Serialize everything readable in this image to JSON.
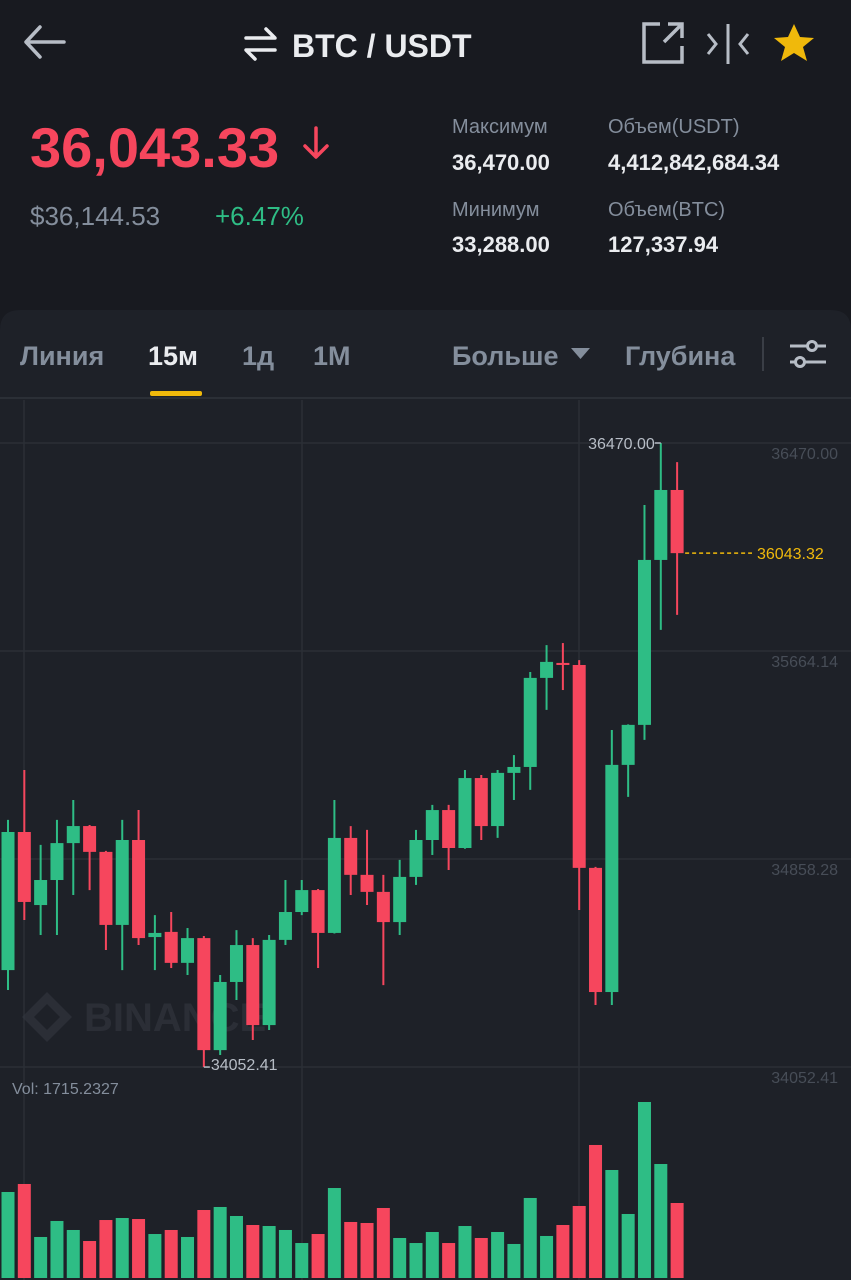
{
  "header": {
    "title": "BTC / USDT"
  },
  "price": {
    "last": "36,043.33",
    "usd": "$36,144.53",
    "change": "+6.47%"
  },
  "stats": [
    {
      "label": "Максимум",
      "value": "36,470.00"
    },
    {
      "label": "Объем(USDT)",
      "value": "4,412,842,684.34"
    },
    {
      "label": "Минимум",
      "value": "33,288.00"
    },
    {
      "label": "Объем(BTC)",
      "value": "127,337.94"
    }
  ],
  "tabs": [
    "Линия",
    "15м",
    "1д",
    "1М",
    "Больше",
    "Глубина"
  ],
  "chart_data": {
    "type": "candlestick",
    "open": [
      34428,
      34963,
      34680,
      34777,
      34920,
      34986,
      34886,
      34603,
      34932,
      34556,
      34576,
      34456,
      34552,
      34118,
      34382,
      34525,
      34215,
      34545,
      34653,
      34738,
      34572,
      34940,
      34797,
      34731,
      34614,
      34789,
      34932,
      35048,
      34901,
      35172,
      34986,
      35192,
      35215,
      35560,
      35618,
      35610,
      34824,
      34343,
      35223,
      35378,
      36017,
      36288
    ],
    "high": [
      35010,
      35203,
      34913,
      35010,
      35087,
      34990,
      34890,
      35010,
      35048,
      34641,
      34653,
      34591,
      34560,
      34409,
      34583,
      34552,
      34564,
      34777,
      34777,
      34742,
      35087,
      34986,
      34971,
      34797,
      34855,
      34971,
      35068,
      35068,
      35203,
      35184,
      35203,
      35261,
      35583,
      35687,
      35695,
      35629,
      34828,
      35358,
      35380,
      36230,
      36470,
      36396
    ],
    "low": [
      34351,
      34622,
      34564,
      34564,
      34719,
      34738,
      34506,
      34428,
      34525,
      34428,
      34436,
      34409,
      34052.41,
      34099,
      34312,
      34157,
      34196,
      34525,
      34641,
      34436,
      34570,
      34719,
      34680,
      34370,
      34564,
      34758,
      34874,
      34816,
      34898,
      34932,
      34940,
      35087,
      35126,
      35436,
      35513,
      34661,
      34293,
      34293,
      35099,
      35320,
      35746,
      35804
    ],
    "close": [
      34963,
      34692,
      34777,
      34920,
      34986,
      34886,
      34603,
      34932,
      34552,
      34572,
      34456,
      34552,
      34118,
      34382,
      34525,
      34215,
      34545,
      34653,
      34738,
      34572,
      34940,
      34797,
      34731,
      34614,
      34789,
      34932,
      35048,
      34901,
      35172,
      34986,
      35192,
      35215,
      35560,
      35622,
      35610,
      34824,
      34343,
      35223,
      35378,
      36017,
      36288,
      36043.32
    ],
    "volume": [
      1967,
      2150,
      938,
      1304,
      1098,
      846,
      1326,
      1372,
      1349,
      1006,
      1098,
      938,
      1555,
      1624,
      1418,
      1212,
      1189,
      1098,
      800,
      1006,
      2058,
      1281,
      1258,
      1601,
      915,
      800,
      1052,
      800,
      1189,
      915,
      1052,
      778,
      1830,
      961,
      1212,
      1647,
      3042,
      2470,
      1464,
      4025,
      2607,
      1715.2327
    ],
    "up_color": "#2ebd85",
    "down_color": "#f6465d",
    "ylim": [
      34021.6,
      36636.6
    ],
    "yticks": [
      {
        "value": 36470,
        "label": "36470.00"
      },
      {
        "value": 35664.14,
        "label": "35664.14"
      },
      {
        "value": 34858.28,
        "label": "34858.28"
      },
      {
        "value": 34052.41,
        "label": "34052.41"
      }
    ],
    "grid": true,
    "high_marker": {
      "value": 36470,
      "label": "36470.00"
    },
    "low_marker": {
      "value": 34052.41,
      "label": "34052.41"
    },
    "last_price": {
      "value": 36043.32,
      "label": "36043.32",
      "color": "#f0b90b"
    },
    "volume_label": "Vol: 1715.2327",
    "watermark": "BINANCE"
  }
}
